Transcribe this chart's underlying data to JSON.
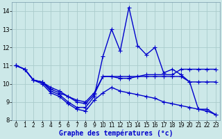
{
  "title": "Graphe des températures (°c)",
  "background_color": "#cce8e8",
  "grid_color": "#aacccc",
  "line_color": "#0000cc",
  "xlim": [
    -0.5,
    23.5
  ],
  "ylim": [
    8.0,
    14.5
  ],
  "yticks": [
    8,
    9,
    10,
    11,
    12,
    13,
    14
  ],
  "xticks": [
    0,
    1,
    2,
    3,
    4,
    5,
    6,
    7,
    8,
    9,
    10,
    11,
    12,
    13,
    14,
    15,
    16,
    17,
    18,
    19,
    20,
    21,
    22,
    23
  ],
  "series": [
    {
      "x": [
        0,
        1,
        2,
        3,
        4,
        5,
        6,
        7,
        8,
        9,
        10,
        11,
        12,
        13,
        14,
        15,
        16,
        17,
        18,
        19,
        20,
        21,
        22,
        23
      ],
      "y": [
        11.0,
        10.8,
        10.2,
        10.1,
        9.6,
        9.4,
        9.0,
        8.7,
        8.7,
        9.3,
        11.5,
        13.0,
        11.8,
        14.2,
        12.1,
        11.6,
        12.0,
        10.6,
        10.8,
        10.5,
        10.1,
        8.6,
        8.6,
        8.3
      ]
    },
    {
      "x": [
        0,
        1,
        2,
        3,
        4,
        5,
        6,
        7,
        8,
        9,
        10,
        11,
        12,
        13,
        14,
        15,
        16,
        17,
        18,
        19,
        20,
        21,
        22,
        23
      ],
      "y": [
        11.0,
        10.8,
        10.2,
        10.1,
        9.7,
        9.5,
        9.3,
        9.0,
        8.9,
        9.4,
        10.4,
        10.4,
        10.4,
        10.4,
        10.4,
        10.5,
        10.5,
        10.5,
        10.5,
        10.8,
        10.8,
        10.8,
        10.8,
        10.8
      ]
    },
    {
      "x": [
        0,
        1,
        2,
        3,
        4,
        5,
        6,
        7,
        8,
        9,
        10,
        11,
        12,
        13,
        14,
        15,
        16,
        17,
        18,
        19,
        20,
        21,
        22,
        23
      ],
      "y": [
        11.0,
        10.8,
        10.2,
        10.1,
        9.8,
        9.6,
        9.3,
        9.1,
        9.0,
        9.5,
        10.4,
        10.4,
        10.3,
        10.3,
        10.4,
        10.4,
        10.4,
        10.4,
        10.4,
        10.4,
        10.1,
        10.1,
        10.1,
        10.1
      ]
    },
    {
      "x": [
        0,
        1,
        2,
        3,
        4,
        5,
        6,
        7,
        8,
        9,
        10,
        11,
        12,
        13,
        14,
        15,
        16,
        17,
        18,
        19,
        20,
        21,
        22,
        23
      ],
      "y": [
        11.0,
        10.8,
        10.2,
        10.0,
        9.5,
        9.3,
        8.9,
        8.6,
        8.5,
        9.1,
        9.5,
        9.8,
        9.6,
        9.5,
        9.4,
        9.3,
        9.2,
        9.0,
        8.9,
        8.8,
        8.7,
        8.6,
        8.5,
        8.3
      ]
    }
  ],
  "marker": "+",
  "markersize": 4,
  "linewidth": 1.0,
  "xlabel_fontsize": 7,
  "tick_fontsize": 5.5
}
